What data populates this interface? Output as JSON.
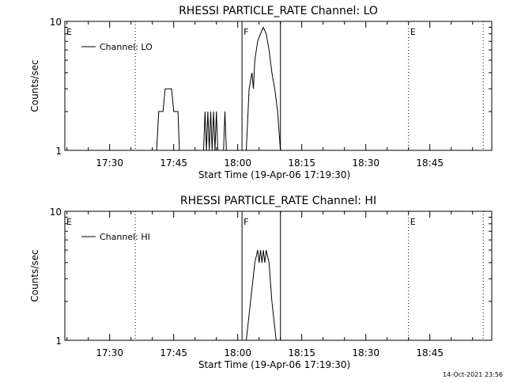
{
  "footer_date": "14-Oct-2021 23:56",
  "chart_data": [
    {
      "type": "line",
      "title": "RHESSI PARTICLE_RATE Channel: LO",
      "xlabel": "Start Time (19-Apr-06 17:19:30)",
      "ylabel": "Counts/sec",
      "y_scale": "log",
      "ylim": [
        1,
        10
      ],
      "y_tick_labels": [
        "1",
        "10"
      ],
      "x_range": [
        "17:19:30",
        "18:59:30"
      ],
      "x_tick_labels": [
        "17:30",
        "17:45",
        "18:00",
        "18:15",
        "18:30",
        "18:45"
      ],
      "grid": false,
      "legend_position": "top-left",
      "series": [
        {
          "name": "Channel: LO",
          "points": [
            [
              "17:41:00",
              1
            ],
            [
              "17:41:30",
              2
            ],
            [
              "17:42:30",
              2
            ],
            [
              "17:43:00",
              3
            ],
            [
              "17:44:30",
              3
            ],
            [
              "17:45:00",
              2
            ],
            [
              "17:46:00",
              2
            ],
            [
              "17:46:20",
              1
            ],
            [
              "17:52:00",
              1
            ],
            [
              "17:52:20",
              2
            ],
            [
              "17:52:40",
              1
            ],
            [
              "17:53:00",
              2
            ],
            [
              "17:53:20",
              1
            ],
            [
              "17:53:40",
              2
            ],
            [
              "17:54:00",
              1
            ],
            [
              "17:54:20",
              2
            ],
            [
              "17:54:40",
              1
            ],
            [
              "17:55:00",
              2
            ],
            [
              "17:55:20",
              1
            ],
            [
              "17:56:40",
              1
            ],
            [
              "17:57:00",
              2
            ],
            [
              "17:57:20",
              1
            ],
            [
              "18:02:00",
              1
            ],
            [
              "18:02:40",
              3
            ],
            [
              "18:03:20",
              4
            ],
            [
              "18:03:40",
              3
            ],
            [
              "18:04:00",
              5
            ],
            [
              "18:04:40",
              7
            ],
            [
              "18:05:20",
              8
            ],
            [
              "18:06:00",
              9
            ],
            [
              "18:06:40",
              8
            ],
            [
              "18:07:20",
              6
            ],
            [
              "18:08:00",
              4
            ],
            [
              "18:08:40",
              3
            ],
            [
              "18:09:20",
              2
            ],
            [
              "18:10:00",
              1
            ]
          ]
        }
      ],
      "markers": [
        {
          "time": "17:19:30",
          "label": "E",
          "style": "dotted"
        },
        {
          "time": "17:36:00",
          "label": "",
          "style": "dotted"
        },
        {
          "time": "18:01:00",
          "label": "F",
          "style": "solid"
        },
        {
          "time": "18:10:00",
          "label": "",
          "style": "solid"
        },
        {
          "time": "18:40:00",
          "label": "E",
          "style": "dotted"
        },
        {
          "time": "18:57:30",
          "label": "",
          "style": "dotted"
        }
      ]
    },
    {
      "type": "line",
      "title": "RHESSI PARTICLE_RATE Channel: HI",
      "xlabel": "Start Time (19-Apr-06 17:19:30)",
      "ylabel": "Counts/sec",
      "y_scale": "log",
      "ylim": [
        1,
        10
      ],
      "y_tick_labels": [
        "1",
        "10"
      ],
      "x_range": [
        "17:19:30",
        "18:59:30"
      ],
      "x_tick_labels": [
        "17:30",
        "17:45",
        "18:00",
        "18:15",
        "18:30",
        "18:45"
      ],
      "grid": false,
      "legend_position": "top-left",
      "series": [
        {
          "name": "Channel: HI",
          "points": [
            [
              "18:02:00",
              1
            ],
            [
              "18:03:00",
              2
            ],
            [
              "18:04:00",
              4
            ],
            [
              "18:04:40",
              5
            ],
            [
              "18:05:00",
              4
            ],
            [
              "18:05:20",
              5
            ],
            [
              "18:05:40",
              4
            ],
            [
              "18:06:00",
              5
            ],
            [
              "18:06:20",
              4
            ],
            [
              "18:06:40",
              5
            ],
            [
              "18:07:20",
              4
            ],
            [
              "18:08:00",
              2
            ],
            [
              "18:09:00",
              1
            ]
          ]
        }
      ],
      "markers": [
        {
          "time": "17:19:30",
          "label": "E",
          "style": "dotted"
        },
        {
          "time": "17:36:00",
          "label": "",
          "style": "dotted"
        },
        {
          "time": "18:01:00",
          "label": "F",
          "style": "solid"
        },
        {
          "time": "18:10:00",
          "label": "",
          "style": "solid"
        },
        {
          "time": "18:40:00",
          "label": "E",
          "style": "dotted"
        },
        {
          "time": "18:57:30",
          "label": "",
          "style": "dotted"
        }
      ]
    }
  ]
}
